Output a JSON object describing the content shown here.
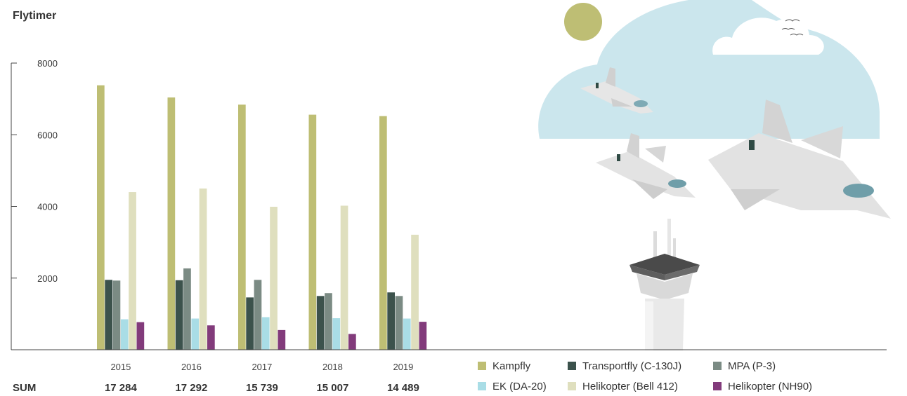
{
  "chart_data": {
    "type": "bar",
    "title": "Flytimer",
    "ylabel": "",
    "xlabel": "",
    "ylim": [
      0,
      8000
    ],
    "yticks": [
      2000,
      4000,
      6000,
      8000
    ],
    "categories": [
      "2015",
      "2016",
      "2017",
      "2018",
      "2019"
    ],
    "series": [
      {
        "name": "Kampfly",
        "color": "#bebe74",
        "values": [
          7380,
          7040,
          6840,
          6560,
          6520
        ]
      },
      {
        "name": "Transportfly (C-130J)",
        "color": "#3c524c",
        "values": [
          1950,
          1940,
          1460,
          1500,
          1600
        ]
      },
      {
        "name": "MPA (P-3)",
        "color": "#7b8b84",
        "values": [
          1930,
          2270,
          1950,
          1580,
          1500
        ]
      },
      {
        "name": "EK (DA-20)",
        "color": "#a9dde6",
        "values": [
          850,
          870,
          910,
          880,
          870
        ]
      },
      {
        "name": "Helikopter (Bell 412)",
        "color": "#dfdfbe",
        "values": [
          4400,
          4500,
          3990,
          4020,
          3210
        ]
      },
      {
        "name": "Helikopter (NH90)",
        "color": "#823b7b",
        "values": [
          770,
          680,
          550,
          440,
          780
        ]
      }
    ],
    "sum_label": "SUM",
    "sums": [
      "17 284",
      "17 292",
      "15 739",
      "15 007",
      "14 489"
    ],
    "legend_position": "bottom-right",
    "grid": false
  }
}
